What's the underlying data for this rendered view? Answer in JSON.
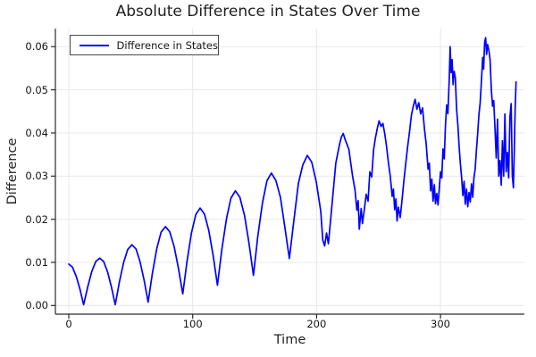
{
  "figure": {
    "title": "Absolute Difference in States Over Time",
    "xlabel": "Time",
    "ylabel": "Difference",
    "legend_label": "Difference in States",
    "colors": {
      "line": "#0000ff",
      "axis": "#2a2a2a",
      "grid": "#e8e8e8",
      "text": "#141414",
      "legend_border": "#4a4a4a",
      "background": "#ffffff"
    }
  },
  "chart_data": {
    "type": "line",
    "title": "Absolute Difference in States Over Time",
    "xlabel": "Time",
    "ylabel": "Difference",
    "legend_entries": [
      "Difference in States"
    ],
    "legend_position": "top-left",
    "grid": true,
    "xlim": [
      -10.8,
      367.7
    ],
    "ylim": [
      -0.002,
      0.0642
    ],
    "xticks": [
      0,
      100,
      200,
      300
    ],
    "yticks": [
      0,
      0.01,
      0.02,
      0.03,
      0.04,
      0.05,
      0.06
    ],
    "ytick_labels": [
      "0.00",
      "0.01",
      "0.02",
      "0.03",
      "0.04",
      "0.05",
      "0.06"
    ],
    "series": [
      {
        "name": "Difference in States",
        "color": "#0000ff",
        "points": [
          [
            0,
            0.0096
          ],
          [
            3,
            0.0089
          ],
          [
            6,
            0.0068
          ],
          [
            9,
            0.0038
          ],
          [
            12,
            0.0002
          ],
          [
            15.3,
            0.0043
          ],
          [
            18.5,
            0.0078
          ],
          [
            21.8,
            0.0102
          ],
          [
            25,
            0.011
          ],
          [
            28.1,
            0.0102
          ],
          [
            31.3,
            0.0078
          ],
          [
            34.4,
            0.0043
          ],
          [
            37.5,
            0.0002
          ],
          [
            40.9,
            0.0055
          ],
          [
            44.3,
            0.01
          ],
          [
            47.6,
            0.013
          ],
          [
            51,
            0.0141
          ],
          [
            54.3,
            0.0131
          ],
          [
            57.5,
            0.0102
          ],
          [
            60.8,
            0.0059
          ],
          [
            64,
            0.0008
          ],
          [
            67.5,
            0.0075
          ],
          [
            71,
            0.0132
          ],
          [
            74.5,
            0.017
          ],
          [
            78,
            0.0183
          ],
          [
            81.5,
            0.0171
          ],
          [
            85,
            0.0137
          ],
          [
            88.5,
            0.0087
          ],
          [
            92,
            0.0027
          ],
          [
            95.5,
            0.0103
          ],
          [
            99,
            0.0168
          ],
          [
            102.5,
            0.0211
          ],
          [
            106,
            0.0226
          ],
          [
            109.5,
            0.0212
          ],
          [
            113,
            0.0174
          ],
          [
            116.5,
            0.0116
          ],
          [
            120,
            0.0047
          ],
          [
            123.6,
            0.0131
          ],
          [
            127.3,
            0.0202
          ],
          [
            130.9,
            0.0249
          ],
          [
            134.5,
            0.0266
          ],
          [
            138.1,
            0.0251
          ],
          [
            141.8,
            0.0209
          ],
          [
            145.4,
            0.0145
          ],
          [
            149,
            0.007
          ],
          [
            152.6,
            0.0161
          ],
          [
            156.3,
            0.0238
          ],
          [
            159.9,
            0.0289
          ],
          [
            163.5,
            0.0307
          ],
          [
            167.1,
            0.029
          ],
          [
            170.8,
            0.0251
          ],
          [
            174.4,
            0.0181
          ],
          [
            178,
            0.0109
          ],
          [
            181.6,
            0.0196
          ],
          [
            185.3,
            0.0283
          ],
          [
            188.9,
            0.0326
          ],
          [
            192.5,
            0.0348
          ],
          [
            196.1,
            0.0332
          ],
          [
            199.8,
            0.0286
          ],
          [
            203.4,
            0.0218
          ],
          [
            205,
            0.0152
          ],
          [
            206.5,
            0.0138
          ],
          [
            208,
            0.0168
          ],
          [
            209.5,
            0.0143
          ],
          [
            212.5,
            0.0235
          ],
          [
            215.5,
            0.033
          ],
          [
            218.5,
            0.0374
          ],
          [
            220,
            0.039
          ],
          [
            221.5,
            0.0399
          ],
          [
            223,
            0.0385
          ],
          [
            226,
            0.0362
          ],
          [
            229,
            0.0301
          ],
          [
            231,
            0.0268
          ],
          [
            232.5,
            0.0221
          ],
          [
            233.5,
            0.0243
          ],
          [
            234.5,
            0.0177
          ],
          [
            236,
            0.0225
          ],
          [
            237,
            0.019
          ],
          [
            238.5,
            0.0222
          ],
          [
            240,
            0.0258
          ],
          [
            241.5,
            0.0242
          ],
          [
            243,
            0.031
          ],
          [
            244.5,
            0.0298
          ],
          [
            246,
            0.0361
          ],
          [
            247.5,
            0.0389
          ],
          [
            249,
            0.0411
          ],
          [
            250.5,
            0.0428
          ],
          [
            252,
            0.0415
          ],
          [
            253.5,
            0.0422
          ],
          [
            255,
            0.0398
          ],
          [
            256.5,
            0.0367
          ],
          [
            258,
            0.0331
          ],
          [
            259.5,
            0.0299
          ],
          [
            261,
            0.0253
          ],
          [
            262,
            0.027
          ],
          [
            263,
            0.0222
          ],
          [
            264,
            0.0247
          ],
          [
            265,
            0.0196
          ],
          [
            266,
            0.0228
          ],
          [
            267.5,
            0.0204
          ],
          [
            269,
            0.0246
          ],
          [
            270.5,
            0.0291
          ],
          [
            272,
            0.0331
          ],
          [
            273.5,
            0.0368
          ],
          [
            275,
            0.0402
          ],
          [
            276.5,
            0.0441
          ],
          [
            278,
            0.0462
          ],
          [
            279.5,
            0.0478
          ],
          [
            281,
            0.0455
          ],
          [
            282.5,
            0.047
          ],
          [
            284,
            0.0444
          ],
          [
            285.5,
            0.0458
          ],
          [
            287,
            0.041
          ],
          [
            288.5,
            0.0374
          ],
          [
            290,
            0.0316
          ],
          [
            291,
            0.033
          ],
          [
            292,
            0.0266
          ],
          [
            293,
            0.0293
          ],
          [
            294,
            0.0242
          ],
          [
            295,
            0.028
          ],
          [
            296,
            0.0236
          ],
          [
            297,
            0.026
          ],
          [
            298,
            0.0233
          ],
          [
            299,
            0.027
          ],
          [
            300,
            0.031
          ],
          [
            301,
            0.0296
          ],
          [
            302,
            0.0363
          ],
          [
            303,
            0.034
          ],
          [
            304,
            0.0415
          ],
          [
            305,
            0.0465
          ],
          [
            306,
            0.0445
          ],
          [
            307,
            0.052
          ],
          [
            307.8,
            0.06
          ],
          [
            308.6,
            0.054
          ],
          [
            309.4,
            0.057
          ],
          [
            310.2,
            0.0512
          ],
          [
            311,
            0.0543
          ],
          [
            312,
            0.0528
          ],
          [
            313,
            0.0455
          ],
          [
            314,
            0.042
          ],
          [
            315,
            0.037
          ],
          [
            316,
            0.033
          ],
          [
            317,
            0.0298
          ],
          [
            318,
            0.0255
          ],
          [
            319,
            0.0288
          ],
          [
            320,
            0.0235
          ],
          [
            321,
            0.027
          ],
          [
            322,
            0.0229
          ],
          [
            323,
            0.0262
          ],
          [
            324,
            0.024
          ],
          [
            325,
            0.0282
          ],
          [
            326,
            0.0251
          ],
          [
            327,
            0.0296
          ],
          [
            328,
            0.0316
          ],
          [
            329,
            0.036
          ],
          [
            330,
            0.0398
          ],
          [
            331,
            0.0442
          ],
          [
            332,
            0.047
          ],
          [
            333,
            0.052
          ],
          [
            334,
            0.0575
          ],
          [
            334.8,
            0.0548
          ],
          [
            335.6,
            0.061
          ],
          [
            336.4,
            0.0621
          ],
          [
            337.2,
            0.0582
          ],
          [
            338,
            0.0605
          ],
          [
            339,
            0.0592
          ],
          [
            340,
            0.057
          ],
          [
            341,
            0.05
          ],
          [
            342,
            0.0462
          ],
          [
            343,
            0.0475
          ],
          [
            344,
            0.041
          ],
          [
            345,
            0.0342
          ],
          [
            346,
            0.0432
          ],
          [
            347,
            0.03
          ],
          [
            348,
            0.0336
          ],
          [
            349,
            0.0279
          ],
          [
            350,
            0.0382
          ],
          [
            351,
            0.03
          ],
          [
            352,
            0.0444
          ],
          [
            353,
            0.031
          ],
          [
            354,
            0.0355
          ],
          [
            355,
            0.0296
          ],
          [
            356,
            0.0436
          ],
          [
            357,
            0.0468
          ],
          [
            358,
            0.03
          ],
          [
            358.8,
            0.0273
          ],
          [
            359.5,
            0.035
          ],
          [
            360.3,
            0.046
          ],
          [
            361,
            0.0518
          ]
        ]
      }
    ]
  }
}
